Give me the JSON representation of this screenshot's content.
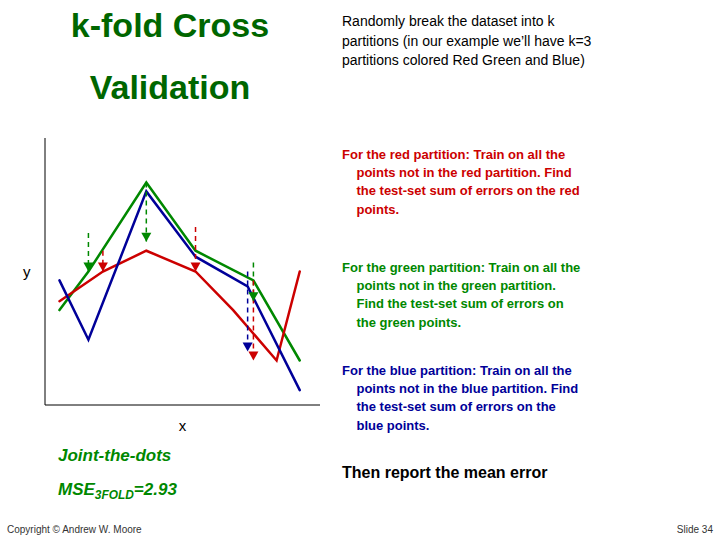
{
  "chart_data": {
    "type": "line",
    "title": "k-fold Cross\nValidation",
    "title_color": "#006600",
    "x_label": "x",
    "y_label": "y",
    "xlim": [
      0,
      9.5
    ],
    "ylim": [
      0,
      9
    ],
    "tick_labels": false,
    "grid": false,
    "series": [
      {
        "color": "#008800",
        "x": [
          0.5,
          1.5,
          3.5,
          5.2,
          7.2,
          8.8
        ],
        "values": [
          3.2,
          4.5,
          7.5,
          5.2,
          4.2,
          1.5
        ],
        "errors": [
          {
            "x": 1.5,
            "from": 5.8,
            "to": 4.5
          },
          {
            "x": 3.5,
            "from": 7.5,
            "to": 5.5
          },
          {
            "x": 7.2,
            "from": 4.8,
            "to": 3.5
          }
        ]
      },
      {
        "color": "#cc0000",
        "x": [
          0.5,
          2.0,
          3.5,
          5.2,
          6.5,
          8.0,
          8.8
        ],
        "values": [
          3.5,
          4.5,
          5.2,
          4.5,
          3.2,
          1.5,
          4.5
        ],
        "errors": [
          {
            "x": 2.0,
            "from": 5.2,
            "to": 4.5
          },
          {
            "x": 5.2,
            "from": 6.0,
            "to": 4.5
          },
          {
            "x": 7.2,
            "from": 4.2,
            "to": 1.5
          }
        ]
      },
      {
        "color": "#000099",
        "x": [
          0.5,
          1.5,
          3.5,
          5.2,
          7.0,
          8.8
        ],
        "values": [
          4.2,
          2.2,
          7.2,
          5.0,
          4.0,
          0.5
        ],
        "errors": [
          {
            "x": 7.0,
            "from": 4.5,
            "to": 1.8
          }
        ]
      }
    ],
    "annotations": [
      {
        "text": "Randomly break the dataset into k\npartitions (in our example we’ll have k=3\npartitions colored Red Green and Blue)",
        "color": "#000000"
      },
      {
        "text": "For the red partition: Train on all the\n    points not in the red partition. Find\n    the test-set sum of errors on the red\n    points.",
        "color": "#cc0000"
      },
      {
        "text": "For the green partition: Train on all the\n    points not in the green partition.\n    Find the test-set sum of errors on\n    the green points.",
        "color": "#008800"
      },
      {
        "text": "For the blue partition: Train on all the\n    points not in the blue partition. Find\n    the test-set sum of errors on the\n    blue points.",
        "color": "#000099"
      },
      {
        "text": "Then report the mean error",
        "color": "#000000"
      },
      {
        "text": "Joint-the-dots",
        "color": "#008800"
      },
      {
        "text": "MSE",
        "subscript": "3FOLD",
        "suffix": "=2.93",
        "color": "#008800"
      },
      {
        "text": "Copyright © Andrew W. Moore",
        "color": "#333333"
      },
      {
        "text": "Slide 34",
        "color": "#333333"
      }
    ]
  }
}
